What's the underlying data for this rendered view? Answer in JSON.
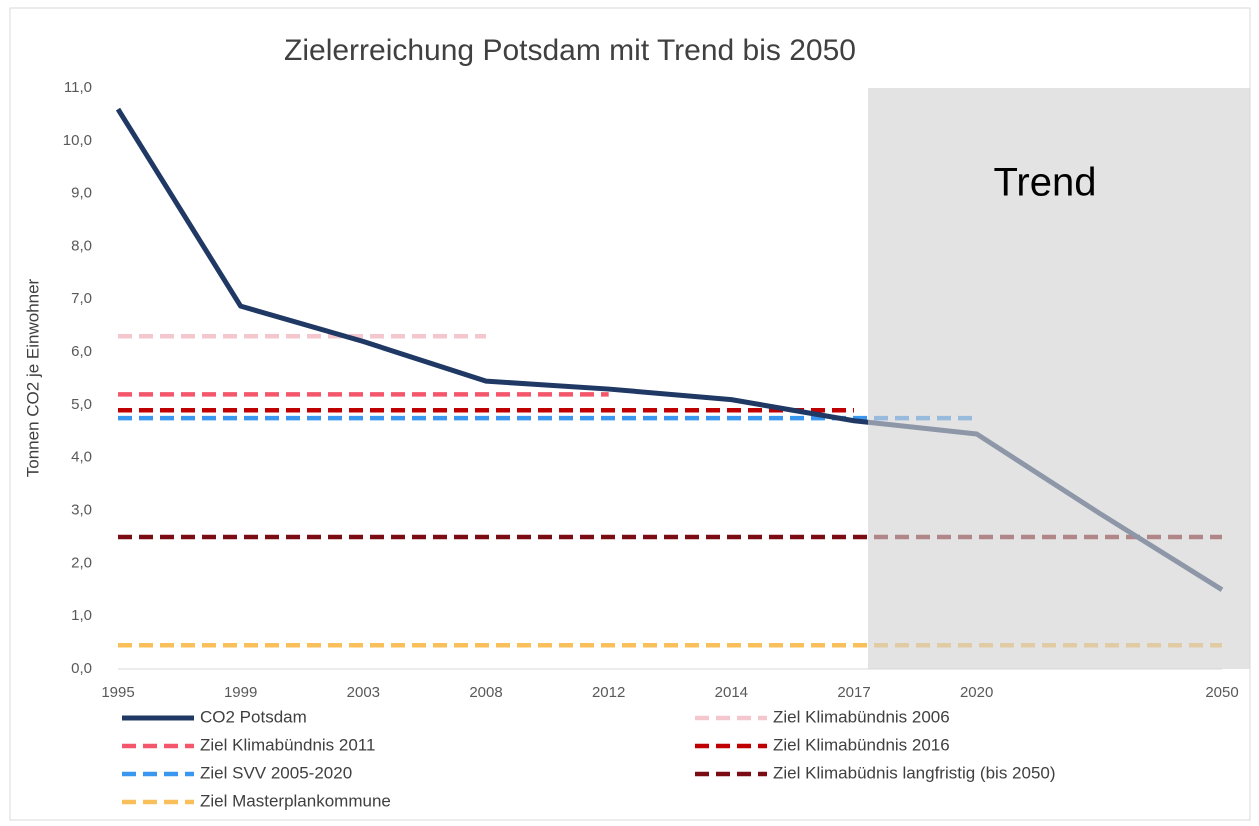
{
  "chart_data": {
    "type": "line",
    "title": "Zielerreichung Potsdam  mit Trend bis 2050",
    "y_label": "Tonnen CO2 je Einwohner",
    "annotation": "Trend",
    "categories": [
      "1995",
      "1999",
      "2003",
      "2008",
      "2012",
      "2014",
      "2017",
      "2020",
      null,
      "2050"
    ],
    "ylim": [
      0,
      11
    ],
    "yticks": [
      {
        "value": 0,
        "label": "0,0"
      },
      {
        "value": 1,
        "label": "1,0"
      },
      {
        "value": 2,
        "label": "2,0"
      },
      {
        "value": 3,
        "label": "3,0"
      },
      {
        "value": 4,
        "label": "4,0"
      },
      {
        "value": 5,
        "label": "5,0"
      },
      {
        "value": 6,
        "label": "6,0"
      },
      {
        "value": 7,
        "label": "7,0"
      },
      {
        "value": 8,
        "label": "8,0"
      },
      {
        "value": 9,
        "label": "9,0"
      },
      {
        "value": 10,
        "label": "10,0"
      },
      {
        "value": 11,
        "label": "11,0"
      }
    ],
    "series": [
      {
        "name": "CO2 Potsdam",
        "color": "#1f3864",
        "dashed": false,
        "values": [
          10.6,
          6.87,
          6.2,
          5.45,
          5.3,
          5.1,
          4.7,
          4.45,
          2.95,
          1.5
        ]
      },
      {
        "name": "Ziel Klimabündnis 2006",
        "color": "#f4c7cf",
        "dashed": true,
        "values": [
          6.3,
          6.3,
          6.3,
          6.3,
          null,
          null,
          null,
          null,
          null,
          null
        ]
      },
      {
        "name": "Ziel Klimabündnis 2011",
        "color": "#f4576b",
        "dashed": true,
        "values": [
          5.2,
          5.2,
          5.2,
          5.2,
          5.2,
          null,
          null,
          null,
          null,
          null
        ]
      },
      {
        "name": "Ziel Klimabündnis 2016",
        "color": "#c00000",
        "dashed": true,
        "values": [
          4.9,
          4.9,
          4.9,
          4.9,
          4.9,
          4.9,
          4.9,
          null,
          null,
          null
        ]
      },
      {
        "name": "Ziel SVV 2005-2020",
        "color": "#3a97f0",
        "dashed": true,
        "values": [
          4.75,
          4.75,
          4.75,
          4.75,
          4.75,
          4.75,
          4.75,
          4.75,
          null,
          null
        ]
      },
      {
        "name": "Ziel Klimabüdnis langfristig (bis 2050)",
        "color": "#7b0c13",
        "dashed": true,
        "values": [
          2.5,
          2.5,
          2.5,
          2.5,
          2.5,
          2.5,
          2.5,
          2.5,
          2.5,
          2.5
        ]
      },
      {
        "name": "Ziel Masterplankommune",
        "color": "#f8bf5a",
        "dashed": true,
        "values": [
          0.45,
          0.45,
          0.45,
          0.45,
          0.45,
          0.45,
          0.45,
          0.45,
          0.45,
          0.45
        ]
      }
    ]
  }
}
